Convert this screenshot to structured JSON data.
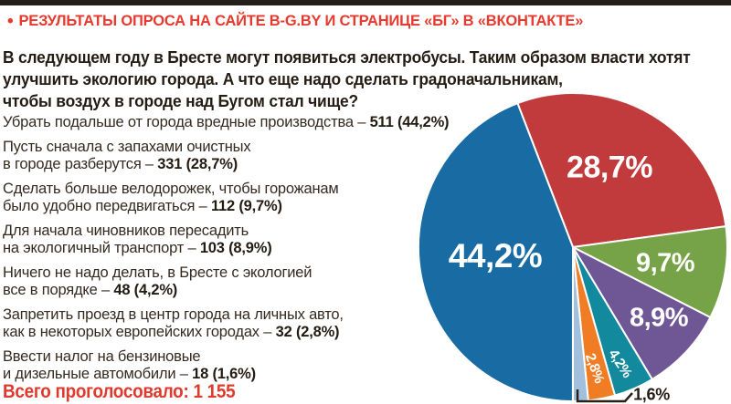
{
  "page": {
    "background": "#ffffff",
    "accent_red": "#e8392e",
    "text_dark": "#241b12",
    "top_bar_color": "#261e18"
  },
  "header": {
    "bullet": "•",
    "title": "РЕЗУЛЬТАТЫ ОПРОСА НА САЙТЕ B-G.BY И СТРАНИЦЕ «БГ» В «ВКОНТАКТЕ»"
  },
  "question": {
    "lines": [
      "В следующем году в Бресте могут появиться электробусы. Таким образом власти хотят",
      "улучшить экологию города. А что еще надо сделать градоначальникам,",
      "чтобы воздух в городе над Бугом стал чище?"
    ]
  },
  "answers": [
    {
      "l1": "Убрать подальше от города вредные производства – ",
      "l2": "",
      "value": "511 (44,2%)"
    },
    {
      "l1": "Пусть сначала с запахами очистных",
      "l2": "в городе разберутся – ",
      "value": "331 (28,7%)"
    },
    {
      "l1": "Сделать больше велодорожек, чтобы горожанам",
      "l2": "было удобно передвигаться – ",
      "value": "112 (9,7%)"
    },
    {
      "l1": "Для начала чиновников пересадить",
      "l2": "на экологичный транспорт – ",
      "value": "103 (8,9%)"
    },
    {
      "l1": "Ничего не надо делать, в Бресте с экологией",
      "l2": "все в порядке – ",
      "value": "48 (4,2%)"
    },
    {
      "l1": "Запретить проезд в центр города на личных авто,",
      "l2": "как в некоторых европейских городах – ",
      "value": "32 (2,8%)"
    },
    {
      "l1": "Ввести налог на бензиновые",
      "l2": "и дизельные автомобили – ",
      "value": "18 (1,6%)"
    }
  ],
  "footer": {
    "total_label": "Всего проголосовало: 1 155"
  },
  "chart_data": {
    "type": "pie",
    "title": "А что еще надо сделать градоначальникам, чтобы воздух в городе над Бугом стал чище?",
    "total_votes": "1 155",
    "start_angle_from_top_deg": -21,
    "direction": "clockwise",
    "legend_position": "none",
    "slices": [
      {
        "label": "28,7%",
        "percent": 28.7,
        "votes": 331,
        "color": "#c13a3c",
        "category": "Пусть сначала с запахами очистных в городе разберутся"
      },
      {
        "label": "9,7%",
        "percent": 9.7,
        "votes": 112,
        "color": "#76a347",
        "category": "Сделать больше велодорожек, чтобы горожанам было удобно передвигаться"
      },
      {
        "label": "8,9%",
        "percent": 8.9,
        "votes": 103,
        "color": "#6f5796",
        "category": "Для начала чиновников пересадить на экологичный транспорт"
      },
      {
        "label": "4,2%",
        "percent": 4.2,
        "votes": 48,
        "color": "#13899e",
        "category": "Ничего не надо делать, в Бресте с экологией все в порядке"
      },
      {
        "label": "2,8%",
        "percent": 2.8,
        "votes": 32,
        "color": "#f07c23",
        "category": "Запретить проезд в центр города на личных авто, как в некоторых европейских городах"
      },
      {
        "label": "1,6%",
        "percent": 1.6,
        "votes": 18,
        "color": "#a2c0dc",
        "category": "Ввести налог на бензиновые и дизельные автомобили"
      },
      {
        "label": "44,2%",
        "percent": 44.2,
        "votes": 511,
        "color": "#186ba3",
        "category": "Убрать подальше от города вредные производства"
      }
    ]
  }
}
